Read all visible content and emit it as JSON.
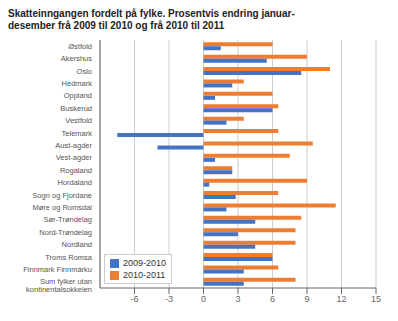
{
  "chart_data": {
    "type": "bar",
    "orientation": "horizontal",
    "title": "Skatteinngangen fordelt på fylke. Prosentvis endring januar-\ndesember frå 2009 til 2010 og frå 2010 til 2011",
    "categories": [
      "Østfold",
      "Akershus",
      "Oslo",
      "Hedmark",
      "Oppland",
      "Buskerud",
      "Vestfold",
      "Telemark",
      "Aust-agder",
      "Vest-agder",
      "Rogaland",
      "Hordaland",
      "Sogn og Fjordane",
      "Møre og Romsdal",
      "Sør-Trøndelag",
      "Nord-Trøndelag",
      "Nordland",
      "Troms Romsa",
      "Finnmark Finnmárku",
      "Sum fylker utan\nkontinentalsokkelen"
    ],
    "series": [
      {
        "name": "2009-2010",
        "color": "#4472c4",
        "values": [
          1.5,
          5.5,
          8.5,
          2.5,
          1.0,
          6.0,
          2.0,
          -7.5,
          -4.0,
          1.0,
          2.5,
          0.5,
          2.8,
          2.0,
          4.5,
          3.0,
          4.5,
          6.0,
          3.5,
          3.5
        ]
      },
      {
        "name": "2010-2011",
        "color": "#ed7d31",
        "values": [
          6.0,
          9.0,
          11.0,
          3.5,
          6.0,
          6.5,
          3.5,
          6.5,
          9.5,
          7.5,
          2.5,
          9.0,
          6.5,
          11.5,
          8.5,
          8.0,
          8.0,
          6.0,
          6.5,
          8.0
        ]
      }
    ],
    "xlim": [
      -9,
      15
    ],
    "xticks": [
      -6,
      -3,
      0,
      3,
      6,
      9,
      12,
      15
    ],
    "grid": true,
    "legend": "lower left"
  }
}
